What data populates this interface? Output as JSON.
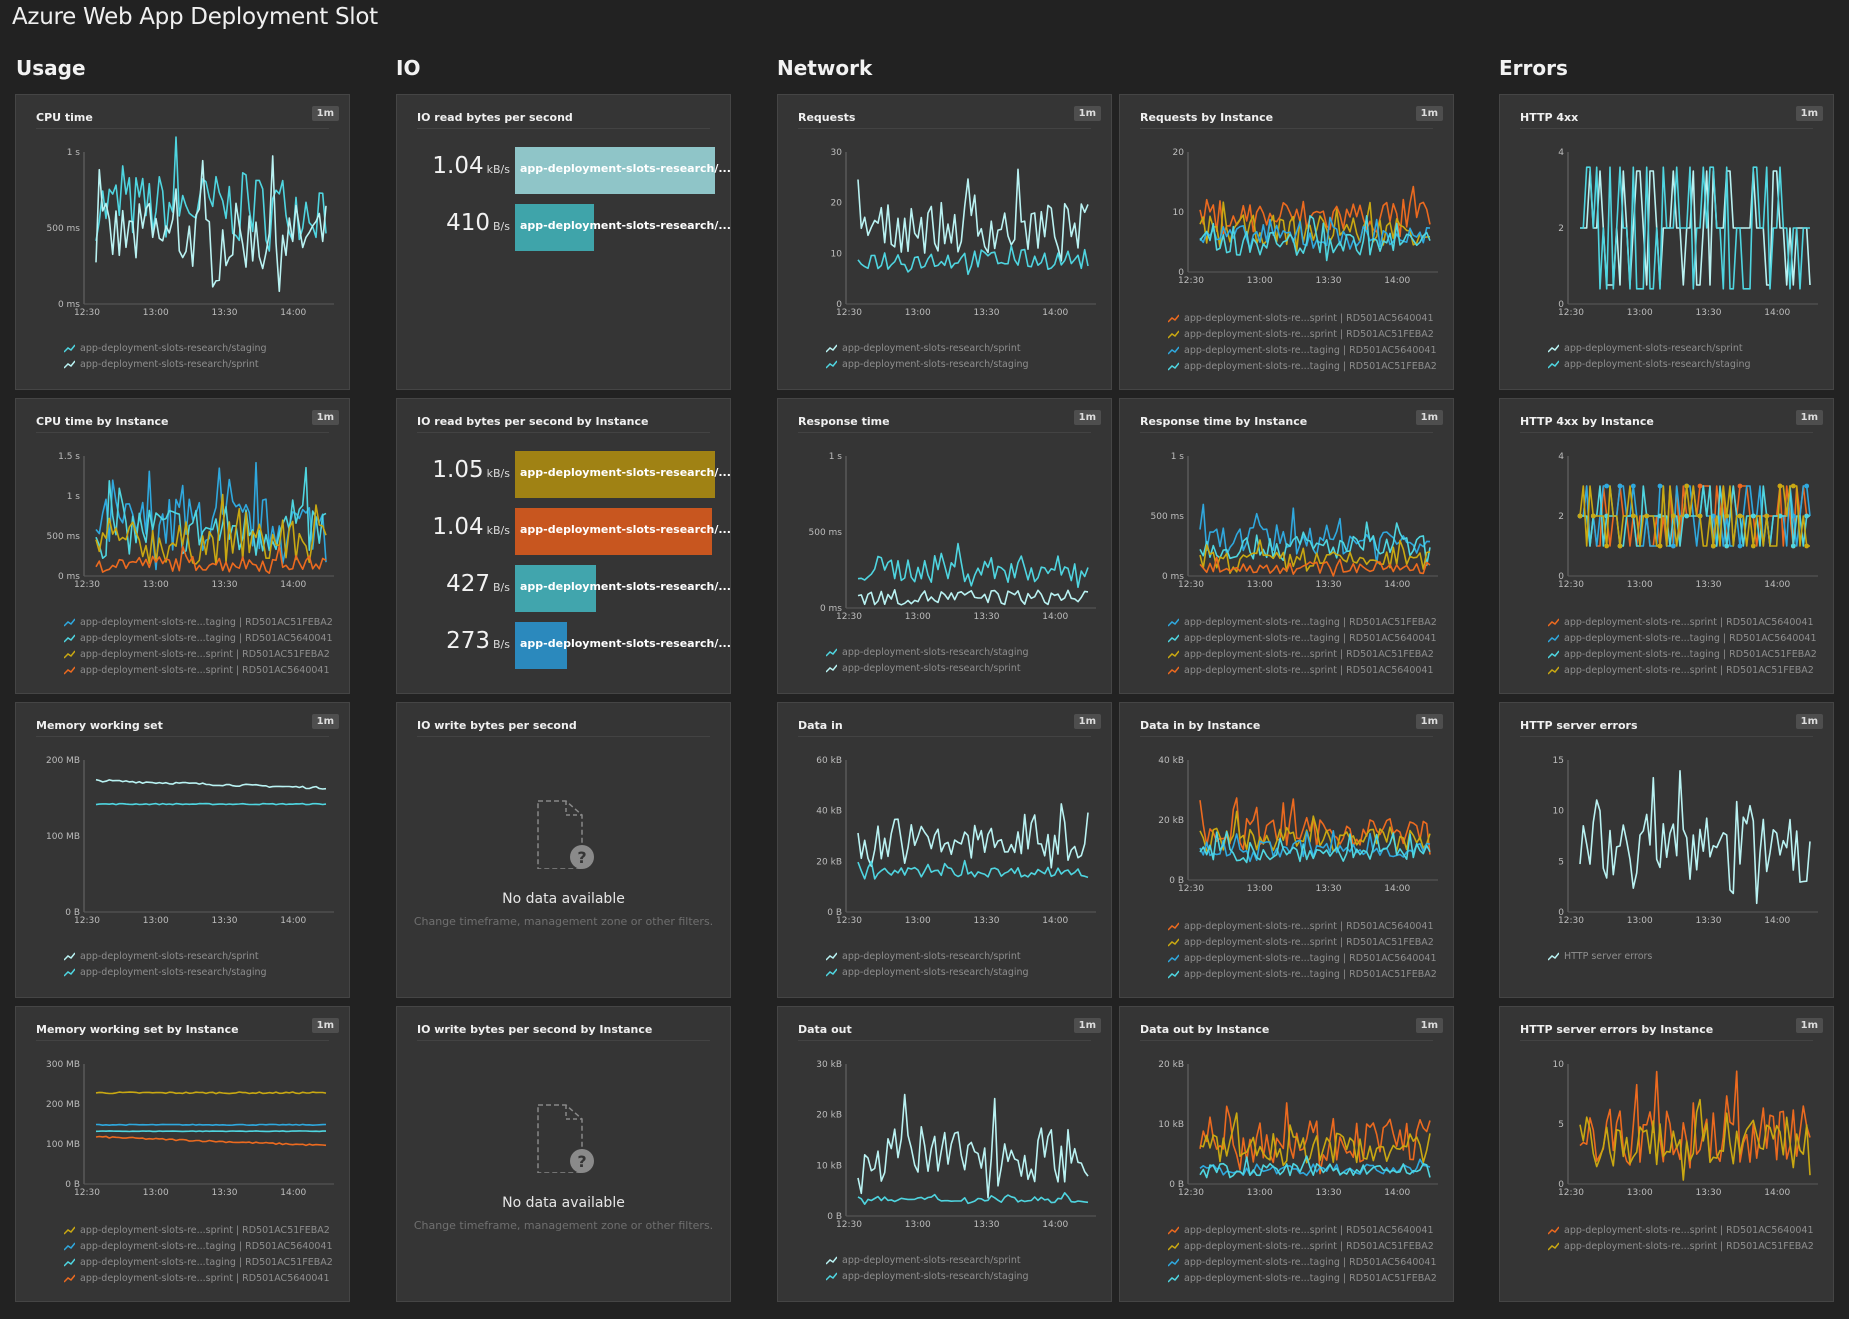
{
  "page_title": "Azure Web App Deployment Slot",
  "sections": [
    "Usage",
    "IO",
    "Network",
    "Errors"
  ],
  "badge": "1m",
  "colors": {
    "white": "#b9f2f2",
    "cyan": "#4fd5e0",
    "blue": "#2fa8de",
    "yellow": "#c9a812",
    "orange": "#ec6a1f"
  },
  "x_ticks": [
    "12:30",
    "13:00",
    "13:30",
    "14:00"
  ],
  "legend_names": {
    "staging": "app-deployment-slots-research/staging",
    "sprint": "app-deployment-slots-research/sprint",
    "i_staging_feba2": "app-deployment-slots-re...taging | RD501AC51FEBA2",
    "i_staging_640041": "app-deployment-slots-re...taging | RD501AC5640041",
    "i_sprint_feba2": "app-deployment-slots-re...sprint | RD501AC51FEBA2",
    "i_sprint_640041": "app-deployment-slots-re...sprint | RD501AC5640041",
    "http_server_errors": "HTTP server errors"
  },
  "tiles": {
    "cpu_time": {
      "title": "CPU time",
      "y_ticks": [
        "0 ms",
        "500 ms",
        "1 s"
      ],
      "legend": [
        "app-deployment-slots-research/staging",
        "app-deployment-slots-research/sprint"
      ]
    },
    "cpu_inst": {
      "title": "CPU time by Instance",
      "y_ticks": [
        "0 ms",
        "500 ms",
        "1 s",
        "1.5 s"
      ],
      "legend": [
        "app-deployment-slots-re...taging | RD501AC51FEBA2",
        "app-deployment-slots-re...taging | RD501AC5640041",
        "app-deployment-slots-re...sprint | RD501AC51FEBA2",
        "app-deployment-slots-re...sprint | RD501AC5640041"
      ]
    },
    "mem": {
      "title": "Memory working set",
      "y_ticks": [
        "0 B",
        "100 MB",
        "200 MB"
      ],
      "legend": [
        "app-deployment-slots-research/sprint",
        "app-deployment-slots-research/staging"
      ]
    },
    "mem_inst": {
      "title": "Memory working set by Instance",
      "y_ticks": [
        "0 B",
        "100 MB",
        "200 MB",
        "300 MB"
      ],
      "legend": [
        "app-deployment-slots-re...sprint | RD501AC51FEBA2",
        "app-deployment-slots-re...taging | RD501AC5640041",
        "app-deployment-slots-re...taging | RD501AC51FEBA2",
        "app-deployment-slots-re...sprint | RD501AC5640041"
      ]
    },
    "io_read": {
      "title": "IO read bytes per second",
      "rows": [
        {
          "value": "1.04",
          "unit": "kB/s",
          "label": "app-deployment-slots-research/..."
        },
        {
          "value": "410",
          "unit": "B/s",
          "label": "app-deployment-slots-research/..."
        }
      ]
    },
    "io_read_inst": {
      "title": "IO read bytes per second by Instance",
      "rows": [
        {
          "value": "1.05",
          "unit": "kB/s",
          "label": "app-deployment-slots-research/..."
        },
        {
          "value": "1.04",
          "unit": "kB/s",
          "label": "app-deployment-slots-research/..."
        },
        {
          "value": "427",
          "unit": "B/s",
          "label": "app-deployment-slots-research/..."
        },
        {
          "value": "273",
          "unit": "B/s",
          "label": "app-deployment-slots-research/..."
        }
      ]
    },
    "io_write": {
      "title": "IO write bytes per second"
    },
    "io_write_inst": {
      "title": "IO write bytes per second by Instance"
    },
    "nodata": {
      "title": "No data available",
      "sub": "Change timeframe, management zone or other filters."
    },
    "requests": {
      "title": "Requests",
      "y_ticks": [
        "0",
        "10",
        "20",
        "30"
      ],
      "legend": [
        "app-deployment-slots-research/sprint",
        "app-deployment-slots-research/staging"
      ]
    },
    "req_inst": {
      "title": "Requests by Instance",
      "y_ticks": [
        "0",
        "10",
        "20"
      ],
      "legend": [
        "app-deployment-slots-re...sprint | RD501AC5640041",
        "app-deployment-slots-re...sprint | RD501AC51FEBA2",
        "app-deployment-slots-re...taging | RD501AC5640041",
        "app-deployment-slots-re...taging | RD501AC51FEBA2"
      ]
    },
    "resp": {
      "title": "Response time",
      "y_ticks": [
        "0 ms",
        "500 ms",
        "1 s"
      ],
      "legend": [
        "app-deployment-slots-research/staging",
        "app-deployment-slots-research/sprint"
      ]
    },
    "resp_inst": {
      "title": "Response time by Instance",
      "y_ticks": [
        "0 ms",
        "500 ms",
        "1 s"
      ],
      "legend": [
        "app-deployment-slots-re...taging | RD501AC51FEBA2",
        "app-deployment-slots-re...taging | RD501AC5640041",
        "app-deployment-slots-re...sprint | RD501AC51FEBA2",
        "app-deployment-slots-re...sprint | RD501AC5640041"
      ]
    },
    "datain": {
      "title": "Data in",
      "y_ticks": [
        "0 B",
        "20 kB",
        "40 kB",
        "60 kB"
      ],
      "legend": [
        "app-deployment-slots-research/sprint",
        "app-deployment-slots-research/staging"
      ]
    },
    "datain_inst": {
      "title": "Data in by Instance",
      "y_ticks": [
        "0 B",
        "20 kB",
        "40 kB"
      ],
      "legend": [
        "app-deployment-slots-re...sprint | RD501AC5640041",
        "app-deployment-slots-re...sprint | RD501AC51FEBA2",
        "app-deployment-slots-re...taging | RD501AC5640041",
        "app-deployment-slots-re...taging | RD501AC51FEBA2"
      ]
    },
    "dataout": {
      "title": "Data out",
      "y_ticks": [
        "0 B",
        "10 kB",
        "20 kB",
        "30 kB"
      ],
      "legend": [
        "app-deployment-slots-research/sprint",
        "app-deployment-slots-research/staging"
      ]
    },
    "dataout_inst": {
      "title": "Data out by Instance",
      "y_ticks": [
        "0 B",
        "10 kB",
        "20 kB"
      ],
      "legend": [
        "app-deployment-slots-re...sprint | RD501AC5640041",
        "app-deployment-slots-re...sprint | RD501AC51FEBA2",
        "app-deployment-slots-re...taging | RD501AC5640041",
        "app-deployment-slots-re...taging | RD501AC51FEBA2"
      ]
    },
    "h4": {
      "title": "HTTP 4xx",
      "y_ticks": [
        "0",
        "2",
        "4"
      ],
      "legend": [
        "app-deployment-slots-research/sprint",
        "app-deployment-slots-research/staging"
      ]
    },
    "h4_inst": {
      "title": "HTTP 4xx by Instance",
      "y_ticks": [
        "0",
        "2",
        "4"
      ],
      "legend": [
        "app-deployment-slots-re...sprint | RD501AC5640041",
        "app-deployment-slots-re...taging | RD501AC5640041",
        "app-deployment-slots-re...taging | RD501AC51FEBA2",
        "app-deployment-slots-re...sprint | RD501AC51FEBA2"
      ]
    },
    "hse": {
      "title": "HTTP server errors",
      "y_ticks": [
        "0",
        "5",
        "10",
        "15"
      ],
      "legend": [
        "HTTP server errors"
      ]
    },
    "hse_inst": {
      "title": "HTTP server errors by Instance",
      "y_ticks": [
        "0",
        "5",
        "10"
      ],
      "legend": [
        "app-deployment-slots-re...sprint | RD501AC5640041",
        "app-deployment-slots-re...sprint | RD501AC51FEBA2"
      ]
    }
  }
}
